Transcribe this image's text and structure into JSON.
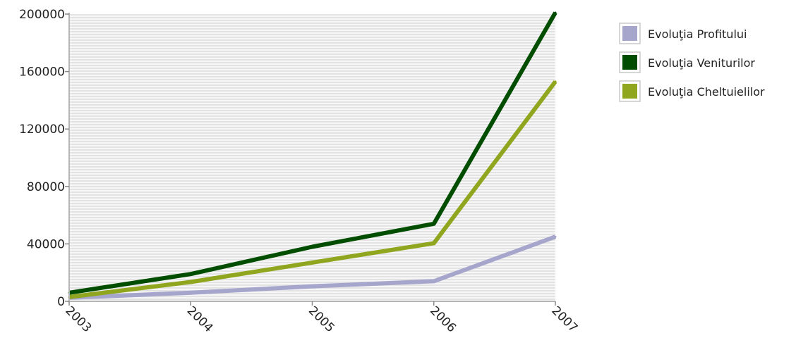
{
  "chart_data": {
    "type": "line",
    "categories": [
      "2003",
      "2004",
      "2005",
      "2006",
      "2007"
    ],
    "ylim": [
      0,
      200000
    ],
    "yticks": [
      0,
      40000,
      80000,
      120000,
      160000,
      200000
    ],
    "grid": "horizontal",
    "legend_position": "right",
    "series": [
      {
        "name": "Evoluţia Profitului",
        "color": "#a6a6cc",
        "values": [
          2500,
          6000,
          10500,
          14000,
          45000
        ]
      },
      {
        "name": "Evoluţia Veniturilor",
        "color": "#004d00",
        "values": [
          6000,
          19000,
          38000,
          54000,
          201000
        ]
      },
      {
        "name": "Evoluţia Cheltuielilor",
        "color": "#8fa61e",
        "values": [
          3000,
          13500,
          27000,
          40500,
          153000
        ]
      }
    ]
  }
}
